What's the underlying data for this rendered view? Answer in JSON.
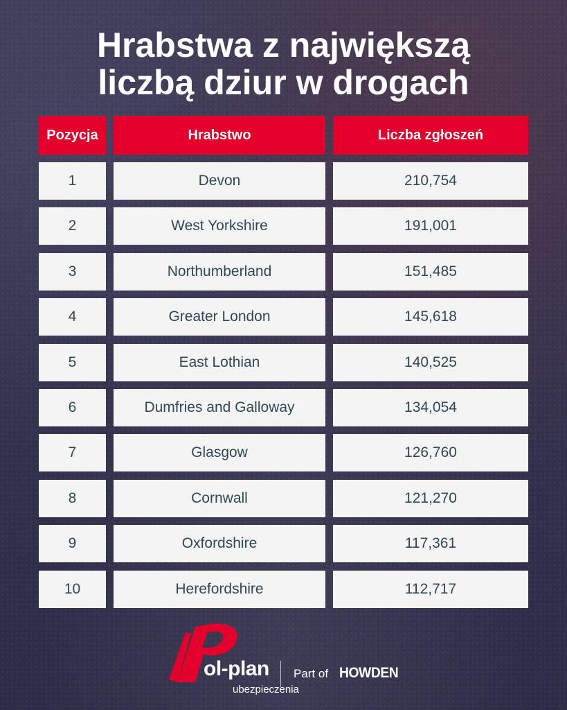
{
  "title": {
    "line1": "Hrabstwa z największą",
    "line2": "liczbą dziur w drogach"
  },
  "table": {
    "headers": [
      "Pozycja",
      "Hrabstwo",
      "Liczba zgłoszeń"
    ],
    "rows": [
      {
        "pos": "1",
        "county": "Devon",
        "count": "210,754"
      },
      {
        "pos": "2",
        "county": "West Yorkshire",
        "count": "191,001"
      },
      {
        "pos": "3",
        "county": "Northumberland",
        "count": "151,485"
      },
      {
        "pos": "4",
        "county": "Greater London",
        "count": "145,618"
      },
      {
        "pos": "5",
        "county": "East Lothian",
        "count": "140,525"
      },
      {
        "pos": "6",
        "county": "Dumfries and Galloway",
        "count": "134,054"
      },
      {
        "pos": "7",
        "county": "Glasgow",
        "count": "126,760"
      },
      {
        "pos": "8",
        "county": "Cornwall",
        "count": "121,270"
      },
      {
        "pos": "9",
        "county": "Oxfordshire",
        "count": "117,361"
      },
      {
        "pos": "10",
        "county": "Herefordshire",
        "count": "112,717"
      }
    ]
  },
  "footer": {
    "brand": "ol-plan",
    "brand_sub": "ubezpieczenia",
    "part_of": "Part of",
    "partner": "HOWDEN"
  },
  "colors": {
    "accent": "#e4002b",
    "cell_bg": "#f4f4f5",
    "cell_text": "#2f4858",
    "background": "#34334f"
  }
}
